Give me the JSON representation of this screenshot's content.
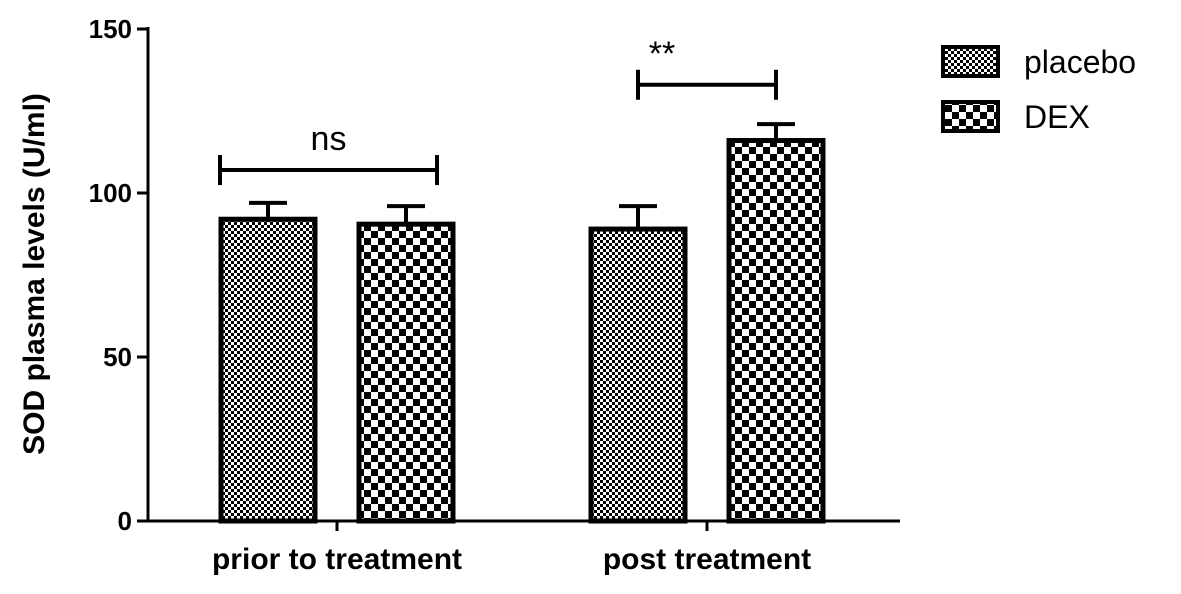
{
  "chart_data": {
    "type": "bar",
    "categories": [
      "prior to treatment",
      "post treatment"
    ],
    "series": [
      {
        "name": "placebo",
        "values": [
          92,
          89
        ],
        "errors": [
          5,
          7
        ],
        "pattern": "fine-checker"
      },
      {
        "name": "DEX",
        "values": [
          90.5,
          116
        ],
        "errors": [
          5.5,
          5
        ],
        "pattern": "coarse-checker"
      }
    ],
    "title": "",
    "xlabel": "",
    "ylabel": "SOD plasma levels (U/ml)",
    "ylim": [
      0,
      150
    ],
    "yticks": [
      0,
      50,
      100,
      150
    ],
    "grid": false,
    "legend": {
      "placement": "top-right"
    },
    "annotations": [
      {
        "label": "ns",
        "category": "prior to treatment",
        "y": 107
      },
      {
        "label": "**",
        "category": "post treatment",
        "y": 133
      }
    ]
  }
}
